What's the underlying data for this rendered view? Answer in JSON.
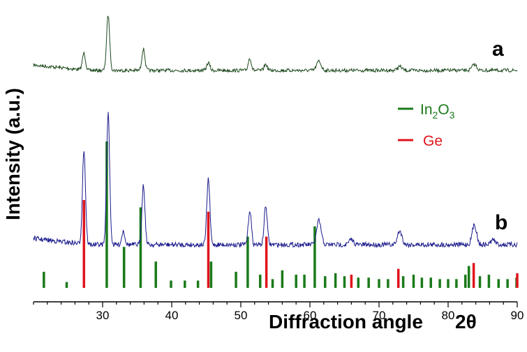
{
  "chart_data": {
    "type": "line",
    "xlabel": "Diffraction angle",
    "xlabel_symbol": "2θ",
    "ylabel": "Intensity (a.u.)",
    "xlim": [
      20,
      90
    ],
    "xticks": [
      30,
      40,
      50,
      60,
      70,
      80,
      90
    ],
    "x_minor_step": 2,
    "legend_position": "upper-right",
    "colors": {
      "In2O3": "#1a7a1a",
      "Ge": "#e0141c",
      "trace_a": "#1e4a1e",
      "trace_b": "#1a1a8c"
    },
    "legend": [
      {
        "base": "In",
        "sub1": "2",
        "mid": "O",
        "sub2": "3",
        "color_key": "In2O3"
      },
      {
        "text": "Ge",
        "color_key": "Ge"
      }
    ],
    "series": [
      {
        "name": "a",
        "baseline": 0.3,
        "peaks": [
          [
            27.3,
            0.22
          ],
          [
            30.8,
            0.72
          ],
          [
            35.9,
            0.28
          ],
          [
            45.3,
            0.1
          ],
          [
            51.3,
            0.16
          ],
          [
            53.6,
            0.08
          ],
          [
            61.3,
            0.12
          ],
          [
            73.0,
            0.05
          ],
          [
            83.8,
            0.08
          ]
        ]
      },
      {
        "name": "b",
        "baseline": 0.3,
        "peaks": [
          [
            27.3,
            1.5
          ],
          [
            30.8,
            2.1
          ],
          [
            33.0,
            0.22
          ],
          [
            35.9,
            0.95
          ],
          [
            45.3,
            1.05
          ],
          [
            51.3,
            0.55
          ],
          [
            53.6,
            0.62
          ],
          [
            61.3,
            0.38
          ],
          [
            66.0,
            0.08
          ],
          [
            73.0,
            0.22
          ],
          [
            83.8,
            0.32
          ],
          [
            86.5,
            0.08
          ]
        ]
      }
    ],
    "reference_lines": {
      "In2O3": [
        [
          21.5,
          0.11
        ],
        [
          24.8,
          0.04
        ],
        [
          30.6,
          1.0
        ],
        [
          33.1,
          0.28
        ],
        [
          35.5,
          0.55
        ],
        [
          37.7,
          0.18
        ],
        [
          39.9,
          0.05
        ],
        [
          41.9,
          0.05
        ],
        [
          43.8,
          0.05
        ],
        [
          45.7,
          0.18
        ],
        [
          49.3,
          0.11
        ],
        [
          51.0,
          0.35
        ],
        [
          52.8,
          0.09
        ],
        [
          54.6,
          0.06
        ],
        [
          56.0,
          0.12
        ],
        [
          58.0,
          0.09
        ],
        [
          59.2,
          0.09
        ],
        [
          60.7,
          0.42
        ],
        [
          62.2,
          0.08
        ],
        [
          63.7,
          0.1
        ],
        [
          65.0,
          0.08
        ],
        [
          67.0,
          0.07
        ],
        [
          68.5,
          0.07
        ],
        [
          70.0,
          0.06
        ],
        [
          71.3,
          0.06
        ],
        [
          73.5,
          0.08
        ],
        [
          75.0,
          0.09
        ],
        [
          76.2,
          0.07
        ],
        [
          77.5,
          0.07
        ],
        [
          78.8,
          0.06
        ],
        [
          80.0,
          0.06
        ],
        [
          81.2,
          0.06
        ],
        [
          82.5,
          0.09
        ],
        [
          83.0,
          0.15
        ],
        [
          84.6,
          0.08
        ],
        [
          85.9,
          0.09
        ],
        [
          87.3,
          0.06
        ],
        [
          88.6,
          0.06
        ],
        [
          89.9,
          0.07
        ]
      ],
      "Ge": [
        [
          27.3,
          0.6
        ],
        [
          45.3,
          0.52
        ],
        [
          53.7,
          0.35
        ],
        [
          66.0,
          0.09
        ],
        [
          72.8,
          0.13
        ],
        [
          83.7,
          0.17
        ],
        [
          90.0,
          0.1
        ]
      ]
    }
  },
  "labels": {
    "trace_a": "a",
    "trace_b": "b",
    "legend_in2o3_base": "In",
    "legend_in2o3_sub1": "2",
    "legend_in2o3_mid": "O",
    "legend_in2o3_sub2": "3",
    "legend_ge": "Ge"
  }
}
